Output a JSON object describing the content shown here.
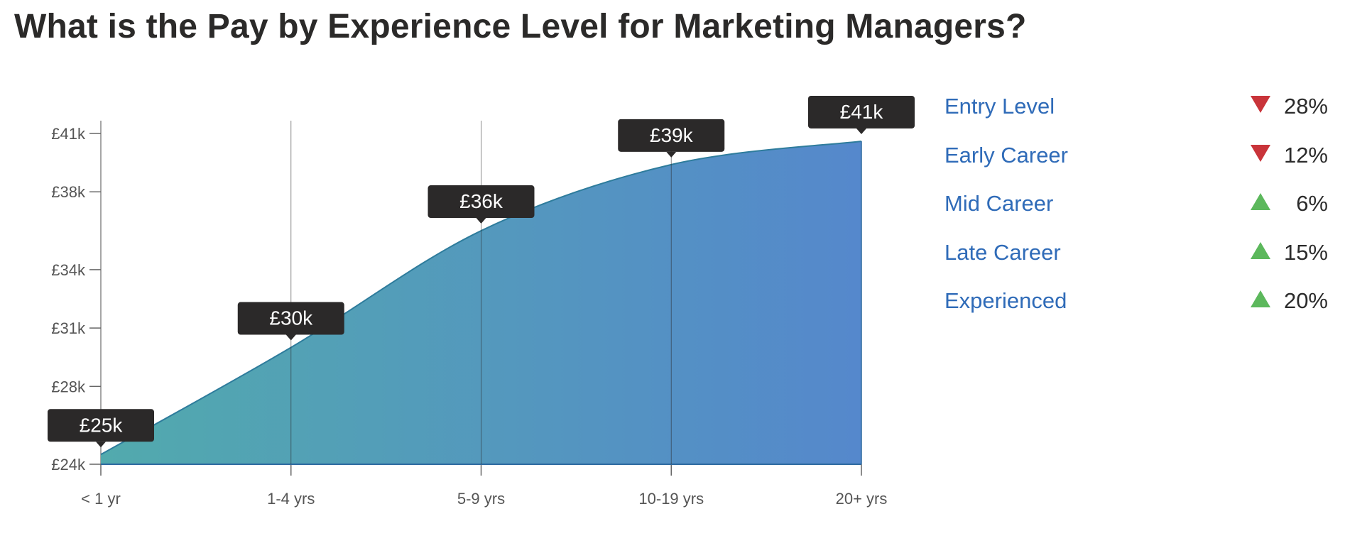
{
  "title": "What is the Pay by Experience Level for Marketing Managers?",
  "chart_data": {
    "type": "area",
    "categories": [
      "< 1 yr",
      "1-4 yrs",
      "5-9 yrs",
      "10-19 yrs",
      "20+ yrs"
    ],
    "values": [
      24.5,
      30,
      36,
      39.4,
      40.6
    ],
    "data_labels": [
      "£25k",
      "£30k",
      "£36k",
      "£39k",
      "£41k"
    ],
    "y_ticks": [
      {
        "value": 24,
        "label": "£24k"
      },
      {
        "value": 28,
        "label": "£28k"
      },
      {
        "value": 31,
        "label": "£31k"
      },
      {
        "value": 34,
        "label": "£34k"
      },
      {
        "value": 38,
        "label": "£38k"
      },
      {
        "value": 41,
        "label": "£41k"
      }
    ],
    "ylim": [
      24,
      41
    ],
    "xlabel": "",
    "ylabel": "",
    "grid": "vertical",
    "colors": {
      "fill_start": "#52aaad",
      "fill_end": "#5588cc",
      "line": "#2e7c9c",
      "label_bg": "#2b2929"
    }
  },
  "legend": [
    {
      "label": "Entry Level",
      "direction": "down",
      "pct": "28%"
    },
    {
      "label": "Early Career",
      "direction": "down",
      "pct": "12%"
    },
    {
      "label": "Mid Career",
      "direction": "up",
      "pct": "6%"
    },
    {
      "label": "Late Career",
      "direction": "up",
      "pct": "15%"
    },
    {
      "label": "Experienced",
      "direction": "up",
      "pct": "20%"
    }
  ]
}
